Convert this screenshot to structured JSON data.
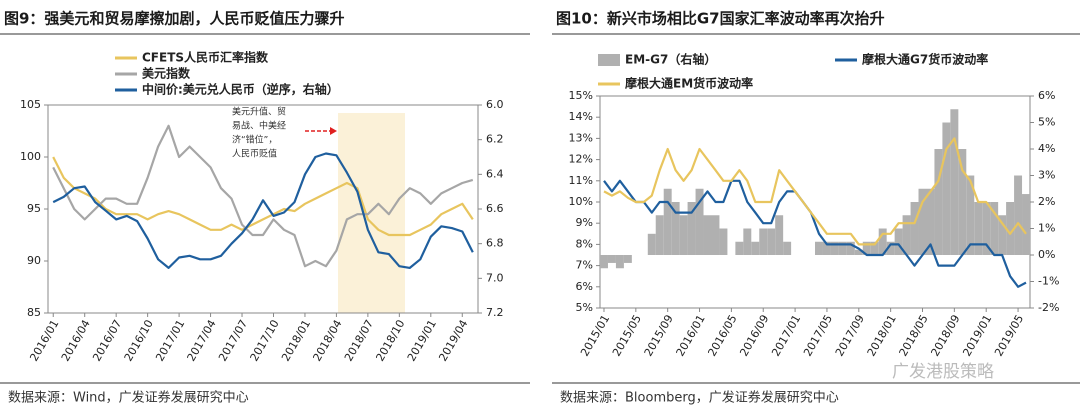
{
  "chart_data": [
    {
      "type": "line",
      "title": "图9：强美元和贸易摩擦加剧，人民币贬值压力骤升",
      "source": "数据来源：Wind，广发证券发展研究中心",
      "annotation": [
        "美元升值、贸",
        "易战、中美经",
        "济“错位”，",
        "人民币贬值"
      ],
      "categories": [
        "2016/01",
        null,
        null,
        "2016/04",
        null,
        null,
        "2016/07",
        null,
        null,
        "2016/10",
        null,
        null,
        "2017/01",
        null,
        null,
        "2017/04",
        null,
        null,
        "2017/07",
        null,
        null,
        "2017/10",
        null,
        null,
        "2018/01",
        null,
        null,
        "2018/04",
        null,
        null,
        "2018/07",
        null,
        null,
        "2018/10",
        null,
        null,
        "2019/01",
        null,
        null,
        "2019/04",
        null
      ],
      "ylim": [
        85,
        105
      ],
      "yticks": [
        85,
        90,
        95,
        100,
        105
      ],
      "y2lim": [
        7.2,
        6.0
      ],
      "y2ticks": [
        {
          "value": 6.0,
          "label": "6.0"
        },
        {
          "value": 6.2,
          "label": "6.2"
        },
        {
          "value": 6.4,
          "label": "6.4"
        },
        {
          "value": 6.6,
          "label": "6.6"
        },
        {
          "value": 6.8,
          "label": "6.8"
        },
        {
          "value": 7.0,
          "label": "7.0"
        },
        {
          "value": 7.2,
          "label": "7.2"
        }
      ],
      "series": [
        {
          "name": "CFETS人民币汇率指数",
          "color": "#e8c55e",
          "values": [
            100,
            98,
            97,
            96.5,
            96,
            95,
            94.5,
            94.5,
            94.5,
            94,
            94.5,
            94.8,
            94.5,
            94,
            93.5,
            93,
            93,
            93.5,
            93,
            93.5,
            94,
            94.5,
            95,
            94.8,
            95.5,
            96,
            96.5,
            97,
            97.5,
            97,
            94,
            93,
            92.5,
            92.5,
            92.5,
            93,
            93.5,
            94.5,
            95,
            95.5,
            94
          ]
        },
        {
          "name": "美元指数",
          "color": "#a6a6a6",
          "values": [
            99,
            97,
            95,
            94,
            95,
            96,
            96,
            95.5,
            95.5,
            98,
            101,
            103,
            100,
            101,
            100,
            99,
            97,
            96,
            93.5,
            92.5,
            92.5,
            94,
            93,
            92.5,
            89.5,
            90,
            89.5,
            91,
            94,
            94.5,
            94.5,
            95.5,
            94.5,
            96,
            97,
            96.5,
            95.5,
            96.5,
            97,
            97.5,
            97.8
          ]
        },
        {
          "name": "中间价:美元兑人民币（逆序，右轴）",
          "color": "#1f5f9e",
          "axis": "y2",
          "values": [
            6.56,
            6.53,
            6.48,
            6.47,
            6.56,
            6.61,
            6.66,
            6.64,
            6.67,
            6.77,
            6.89,
            6.94,
            6.88,
            6.87,
            6.89,
            6.89,
            6.87,
            6.8,
            6.74,
            6.66,
            6.55,
            6.64,
            6.62,
            6.56,
            6.4,
            6.3,
            6.28,
            6.29,
            6.39,
            6.5,
            6.72,
            6.85,
            6.86,
            6.93,
            6.94,
            6.89,
            6.76,
            6.7,
            6.71,
            6.73,
            6.85
          ]
        }
      ]
    },
    {
      "type": "line",
      "title": "图10：新兴市场相比G7国家汇率波动率再次抬升",
      "source": "数据来源：Bloomberg，广发证券发展研究中心",
      "watermark": "广发港股策略",
      "categories": [
        "2015/01",
        null,
        null,
        null,
        "2015/05",
        null,
        null,
        null,
        "2015/09",
        null,
        null,
        null,
        "2016/01",
        null,
        null,
        null,
        "2016/05",
        null,
        null,
        null,
        "2016/09",
        null,
        null,
        null,
        "2017/01",
        null,
        null,
        null,
        "2017/05",
        null,
        null,
        null,
        "2017/09",
        null,
        null,
        null,
        "2018/01",
        null,
        null,
        null,
        "2018/05",
        null,
        null,
        null,
        "2018/09",
        null,
        null,
        null,
        "2019/01",
        null,
        null,
        null,
        "2019/05",
        null
      ],
      "ylim": [
        5,
        15
      ],
      "yticks": [
        {
          "value": 5,
          "label": "5%"
        },
        {
          "value": 6,
          "label": "6%"
        },
        {
          "value": 7,
          "label": "7%"
        },
        {
          "value": 8,
          "label": "8%"
        },
        {
          "value": 9,
          "label": "9%"
        },
        {
          "value": 10,
          "label": "10%"
        },
        {
          "value": 11,
          "label": "11%"
        },
        {
          "value": 12,
          "label": "12%"
        },
        {
          "value": 13,
          "label": "13%"
        },
        {
          "value": 14,
          "label": "14%"
        },
        {
          "value": 15,
          "label": "15%"
        }
      ],
      "y2lim": [
        -2,
        6
      ],
      "y2ticks": [
        {
          "value": -2,
          "label": "-2%"
        },
        {
          "value": -1,
          "label": "-1%"
        },
        {
          "value": 0,
          "label": "0%"
        },
        {
          "value": 1,
          "label": "1%"
        },
        {
          "value": 2,
          "label": "2%"
        },
        {
          "value": 3,
          "label": "3%"
        },
        {
          "value": 4,
          "label": "4%"
        },
        {
          "value": 5,
          "label": "5%"
        },
        {
          "value": 6,
          "label": "6%"
        }
      ],
      "series": [
        {
          "name": "EM-G7（右轴）",
          "color": "#b0b0b0",
          "axis": "y2",
          "style": "area",
          "values": [
            -0.5,
            -0.3,
            -0.5,
            -0.3,
            0,
            0,
            0.8,
            1.5,
            2.5,
            2,
            1.5,
            2,
            2.5,
            1.5,
            1.5,
            1,
            0,
            0.5,
            1,
            0.5,
            1,
            1,
            1.5,
            0.5,
            0,
            0,
            0,
            0.5,
            0.5,
            0.5,
            0.5,
            0.5,
            0.2,
            0.5,
            0.5,
            1,
            0.5,
            1,
            1.5,
            2,
            2.5,
            2.5,
            4,
            5,
            5.5,
            4,
            3,
            2,
            2,
            2,
            1.5,
            2,
            3,
            2.3
          ]
        },
        {
          "name": "摩根大通G7货币波动率",
          "color": "#1f5f9e",
          "values": [
            11,
            10.5,
            11,
            10.5,
            10,
            10,
            9.5,
            10,
            10,
            9.5,
            9.5,
            9.5,
            10,
            10.5,
            10,
            10,
            11,
            11,
            10,
            9.5,
            9,
            9,
            10,
            10.5,
            10.5,
            10,
            9.5,
            8.5,
            8,
            8,
            8,
            8,
            7.8,
            7.5,
            7.5,
            7.5,
            8,
            8,
            7.5,
            7,
            7.5,
            8,
            7,
            7,
            7,
            7.5,
            8,
            8,
            8,
            7.5,
            7.5,
            6.5,
            6,
            6.2
          ]
        },
        {
          "name": "摩根大通EM货币波动率",
          "color": "#e8c55e",
          "values": [
            10.5,
            10.3,
            10.5,
            10.2,
            10,
            10,
            10.3,
            11.5,
            12.5,
            11.5,
            11,
            11.5,
            12.5,
            12,
            11.5,
            11,
            11,
            11.5,
            11,
            10,
            10,
            10,
            11.5,
            11,
            10.5,
            10,
            9.5,
            9,
            8.5,
            8.5,
            8.5,
            8.5,
            8,
            8,
            8,
            8.5,
            8.5,
            9,
            9,
            9,
            10,
            10.5,
            11,
            12.5,
            13,
            11.5,
            11,
            10,
            10,
            9.5,
            9,
            8.5,
            9,
            8.5
          ]
        }
      ]
    }
  ]
}
